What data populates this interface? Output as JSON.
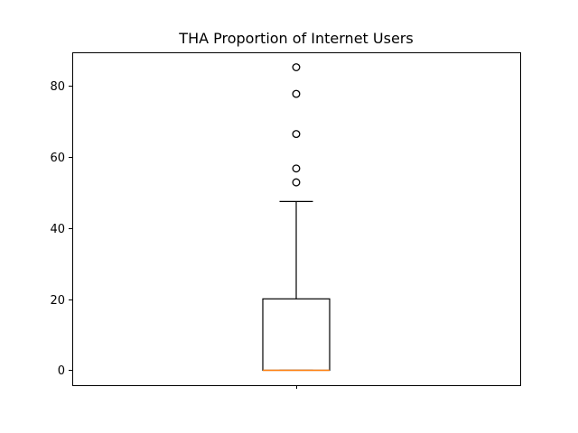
{
  "chart_data": {
    "type": "boxplot",
    "title": "THA Proportion of Internet Users",
    "xlabel": "",
    "ylabel": "",
    "ylim": [
      -4.2,
      89.5
    ],
    "yticks": [
      0,
      20,
      40,
      60,
      80
    ],
    "xticks": [
      ""
    ],
    "grid": false,
    "series": [
      {
        "whisker_low": 0,
        "q1": 0,
        "median": 0,
        "q3": 20.1,
        "whisker_high": 47.5,
        "outliers": [
          52.9,
          56.8,
          66.5,
          77.8,
          85.3
        ]
      }
    ],
    "colors": {
      "box": "#000000",
      "median": "#ff7f0e",
      "flier": "#000000"
    }
  }
}
